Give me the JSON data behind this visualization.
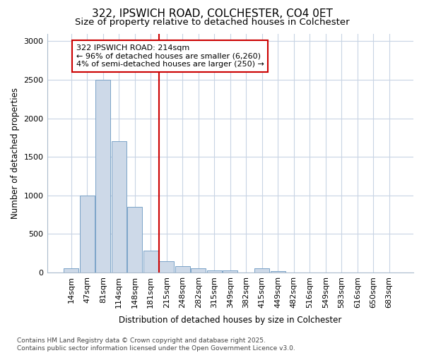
{
  "title1": "322, IPSWICH ROAD, COLCHESTER, CO4 0ET",
  "title2": "Size of property relative to detached houses in Colchester",
  "xlabel": "Distribution of detached houses by size in Colchester",
  "ylabel": "Number of detached properties",
  "categories": [
    "14sqm",
    "47sqm",
    "81sqm",
    "114sqm",
    "148sqm",
    "181sqm",
    "215sqm",
    "248sqm",
    "282sqm",
    "315sqm",
    "349sqm",
    "382sqm",
    "415sqm",
    "449sqm",
    "482sqm",
    "516sqm",
    "549sqm",
    "583sqm",
    "616sqm",
    "650sqm",
    "683sqm"
  ],
  "values": [
    50,
    1000,
    2500,
    1700,
    850,
    280,
    150,
    80,
    50,
    30,
    30,
    0,
    50,
    20,
    0,
    0,
    0,
    0,
    0,
    0,
    0
  ],
  "bar_color": "#cdd9e8",
  "bar_edge_color": "#7ba3c8",
  "grid_color": "#c8d4e4",
  "background_color": "#ffffff",
  "plot_bg_color": "#ffffff",
  "vline_x_index": 6,
  "vline_color": "#cc0000",
  "annotation_text": "322 IPSWICH ROAD: 214sqm\n← 96% of detached houses are smaller (6,260)\n4% of semi-detached houses are larger (250) →",
  "annotation_box_color": "#cc0000",
  "footer": "Contains HM Land Registry data © Crown copyright and database right 2025.\nContains public sector information licensed under the Open Government Licence v3.0.",
  "ylim": [
    0,
    3100
  ],
  "yticks": [
    0,
    500,
    1000,
    1500,
    2000,
    2500,
    3000
  ],
  "title1_fontsize": 11,
  "title2_fontsize": 9.5,
  "axis_label_fontsize": 8.5,
  "tick_fontsize": 8,
  "annotation_fontsize": 8,
  "footer_fontsize": 6.5
}
